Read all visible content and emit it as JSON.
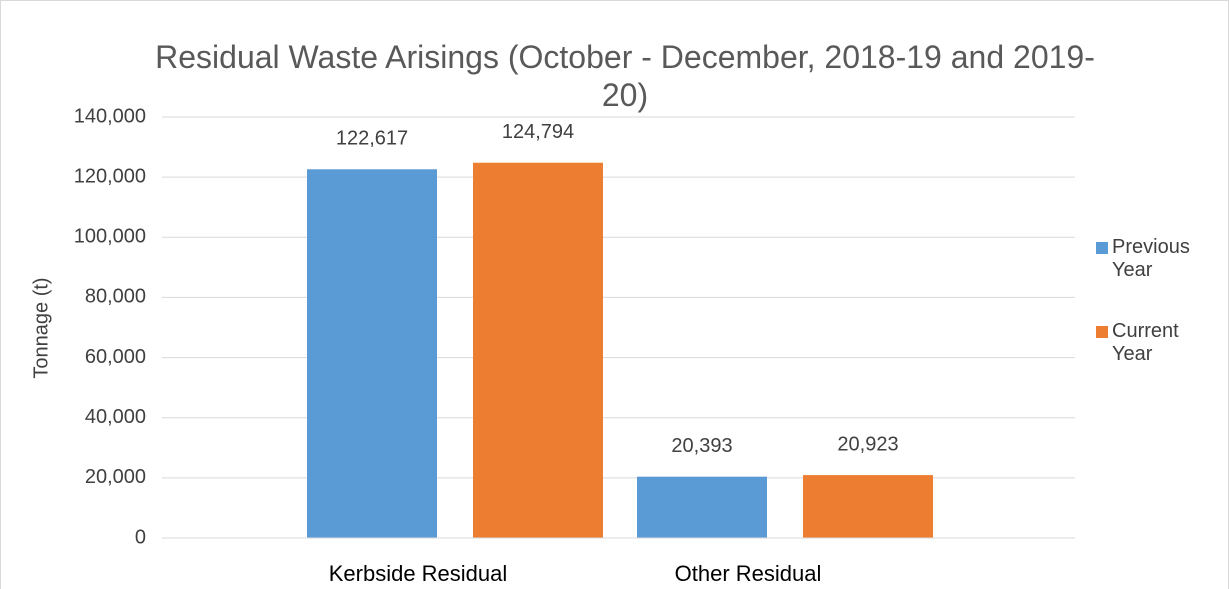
{
  "chart_data": {
    "type": "bar",
    "title": "Residual Waste Arisings (October - December, 2018-19 and 2019-20)",
    "y_label": "Tonnage (t)",
    "categories": [
      "Kerbside Residual",
      "Other Residual"
    ],
    "series": [
      {
        "name": "Previous Year",
        "color": "#5b9bd5",
        "values": [
          122617,
          20393
        ],
        "value_labels": [
          "122,617",
          "20,393"
        ]
      },
      {
        "name": "Current Year",
        "color": "#ed7d31",
        "values": [
          124794,
          20923
        ],
        "value_labels": [
          "124,794",
          "20,923"
        ]
      }
    ],
    "ylim": [
      0,
      140000
    ],
    "yticks": [
      0,
      {
        "value": 20000,
        "label": "20,000"
      },
      {
        "value": 40000,
        "label": "40,000"
      },
      {
        "value": 60000,
        "label": "60,000"
      },
      {
        "value": 80000,
        "label": "80,000"
      },
      {
        "value": 100000,
        "label": "100,000"
      },
      {
        "value": 120000,
        "label": "120,000"
      },
      {
        "value": 140000,
        "label": "140,000"
      }
    ],
    "grid": true,
    "legend": "right"
  }
}
